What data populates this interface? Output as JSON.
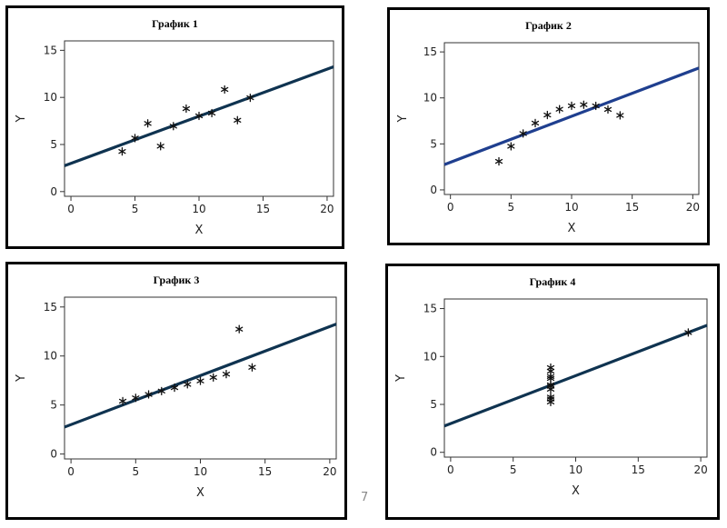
{
  "page_number": "7",
  "chart_data": [
    {
      "type": "scatter",
      "title": "График 1",
      "xlabel": "X",
      "ylabel": "Y",
      "xlim": [
        -0.5,
        20.5
      ],
      "ylim": [
        -0.5,
        16
      ],
      "xticks": [
        0,
        5,
        10,
        15,
        20
      ],
      "yticks": [
        0,
        5,
        10,
        15
      ],
      "grid": false,
      "marker": "asterisk",
      "line_color": "#0f3350",
      "fit_line": {
        "x": [
          -0.5,
          20.5
        ],
        "y": [
          2.75,
          13.25
        ]
      },
      "points": {
        "x": [
          4,
          5,
          6,
          7,
          8,
          9,
          10,
          11,
          12,
          13,
          14
        ],
        "y": [
          4.26,
          5.68,
          7.24,
          4.82,
          6.95,
          8.81,
          8.04,
          8.33,
          10.84,
          7.58,
          9.96
        ]
      }
    },
    {
      "type": "scatter",
      "title": "График 2",
      "xlabel": "X",
      "ylabel": "Y",
      "xlim": [
        -0.5,
        20.5
      ],
      "ylim": [
        -0.5,
        16
      ],
      "xticks": [
        0,
        5,
        10,
        15,
        20
      ],
      "yticks": [
        0,
        5,
        10,
        15
      ],
      "grid": false,
      "marker": "asterisk",
      "line_color": "#1f3f8f",
      "fit_line": {
        "x": [
          -0.5,
          20.5
        ],
        "y": [
          2.75,
          13.25
        ]
      },
      "points": {
        "x": [
          4,
          5,
          6,
          7,
          8,
          9,
          10,
          11,
          12,
          13,
          14
        ],
        "y": [
          3.1,
          4.74,
          6.13,
          7.26,
          8.14,
          8.77,
          9.14,
          9.26,
          9.13,
          8.74,
          8.1
        ]
      }
    },
    {
      "type": "scatter",
      "title": "График 3",
      "xlabel": "X",
      "ylabel": "Y",
      "xlim": [
        -0.5,
        20.5
      ],
      "ylim": [
        -0.5,
        16
      ],
      "xticks": [
        0,
        5,
        10,
        15,
        20
      ],
      "yticks": [
        0,
        5,
        10,
        15
      ],
      "grid": false,
      "marker": "asterisk",
      "line_color": "#0f3350",
      "fit_line": {
        "x": [
          -0.5,
          20.5
        ],
        "y": [
          2.75,
          13.25
        ]
      },
      "points": {
        "x": [
          4,
          5,
          6,
          7,
          8,
          9,
          10,
          11,
          12,
          13,
          14
        ],
        "y": [
          5.39,
          5.73,
          6.08,
          6.42,
          6.77,
          7.11,
          7.46,
          7.81,
          8.15,
          12.74,
          8.84
        ]
      }
    },
    {
      "type": "scatter",
      "title": "График 4",
      "xlabel": "X",
      "ylabel": "Y",
      "xlim": [
        -0.5,
        20.5
      ],
      "ylim": [
        -0.5,
        16
      ],
      "xticks": [
        0,
        5,
        10,
        15,
        20
      ],
      "yticks": [
        0,
        5,
        10,
        15
      ],
      "grid": false,
      "marker": "asterisk",
      "line_color": "#0f3350",
      "fit_line": {
        "x": [
          -0.5,
          20.5
        ],
        "y": [
          2.75,
          13.25
        ]
      },
      "points": {
        "x": [
          8,
          8,
          8,
          8,
          8,
          8,
          8,
          19,
          8,
          8,
          8
        ],
        "y": [
          6.58,
          5.76,
          7.71,
          8.84,
          8.47,
          7.04,
          5.25,
          12.5,
          5.56,
          7.91,
          6.89
        ]
      }
    }
  ]
}
